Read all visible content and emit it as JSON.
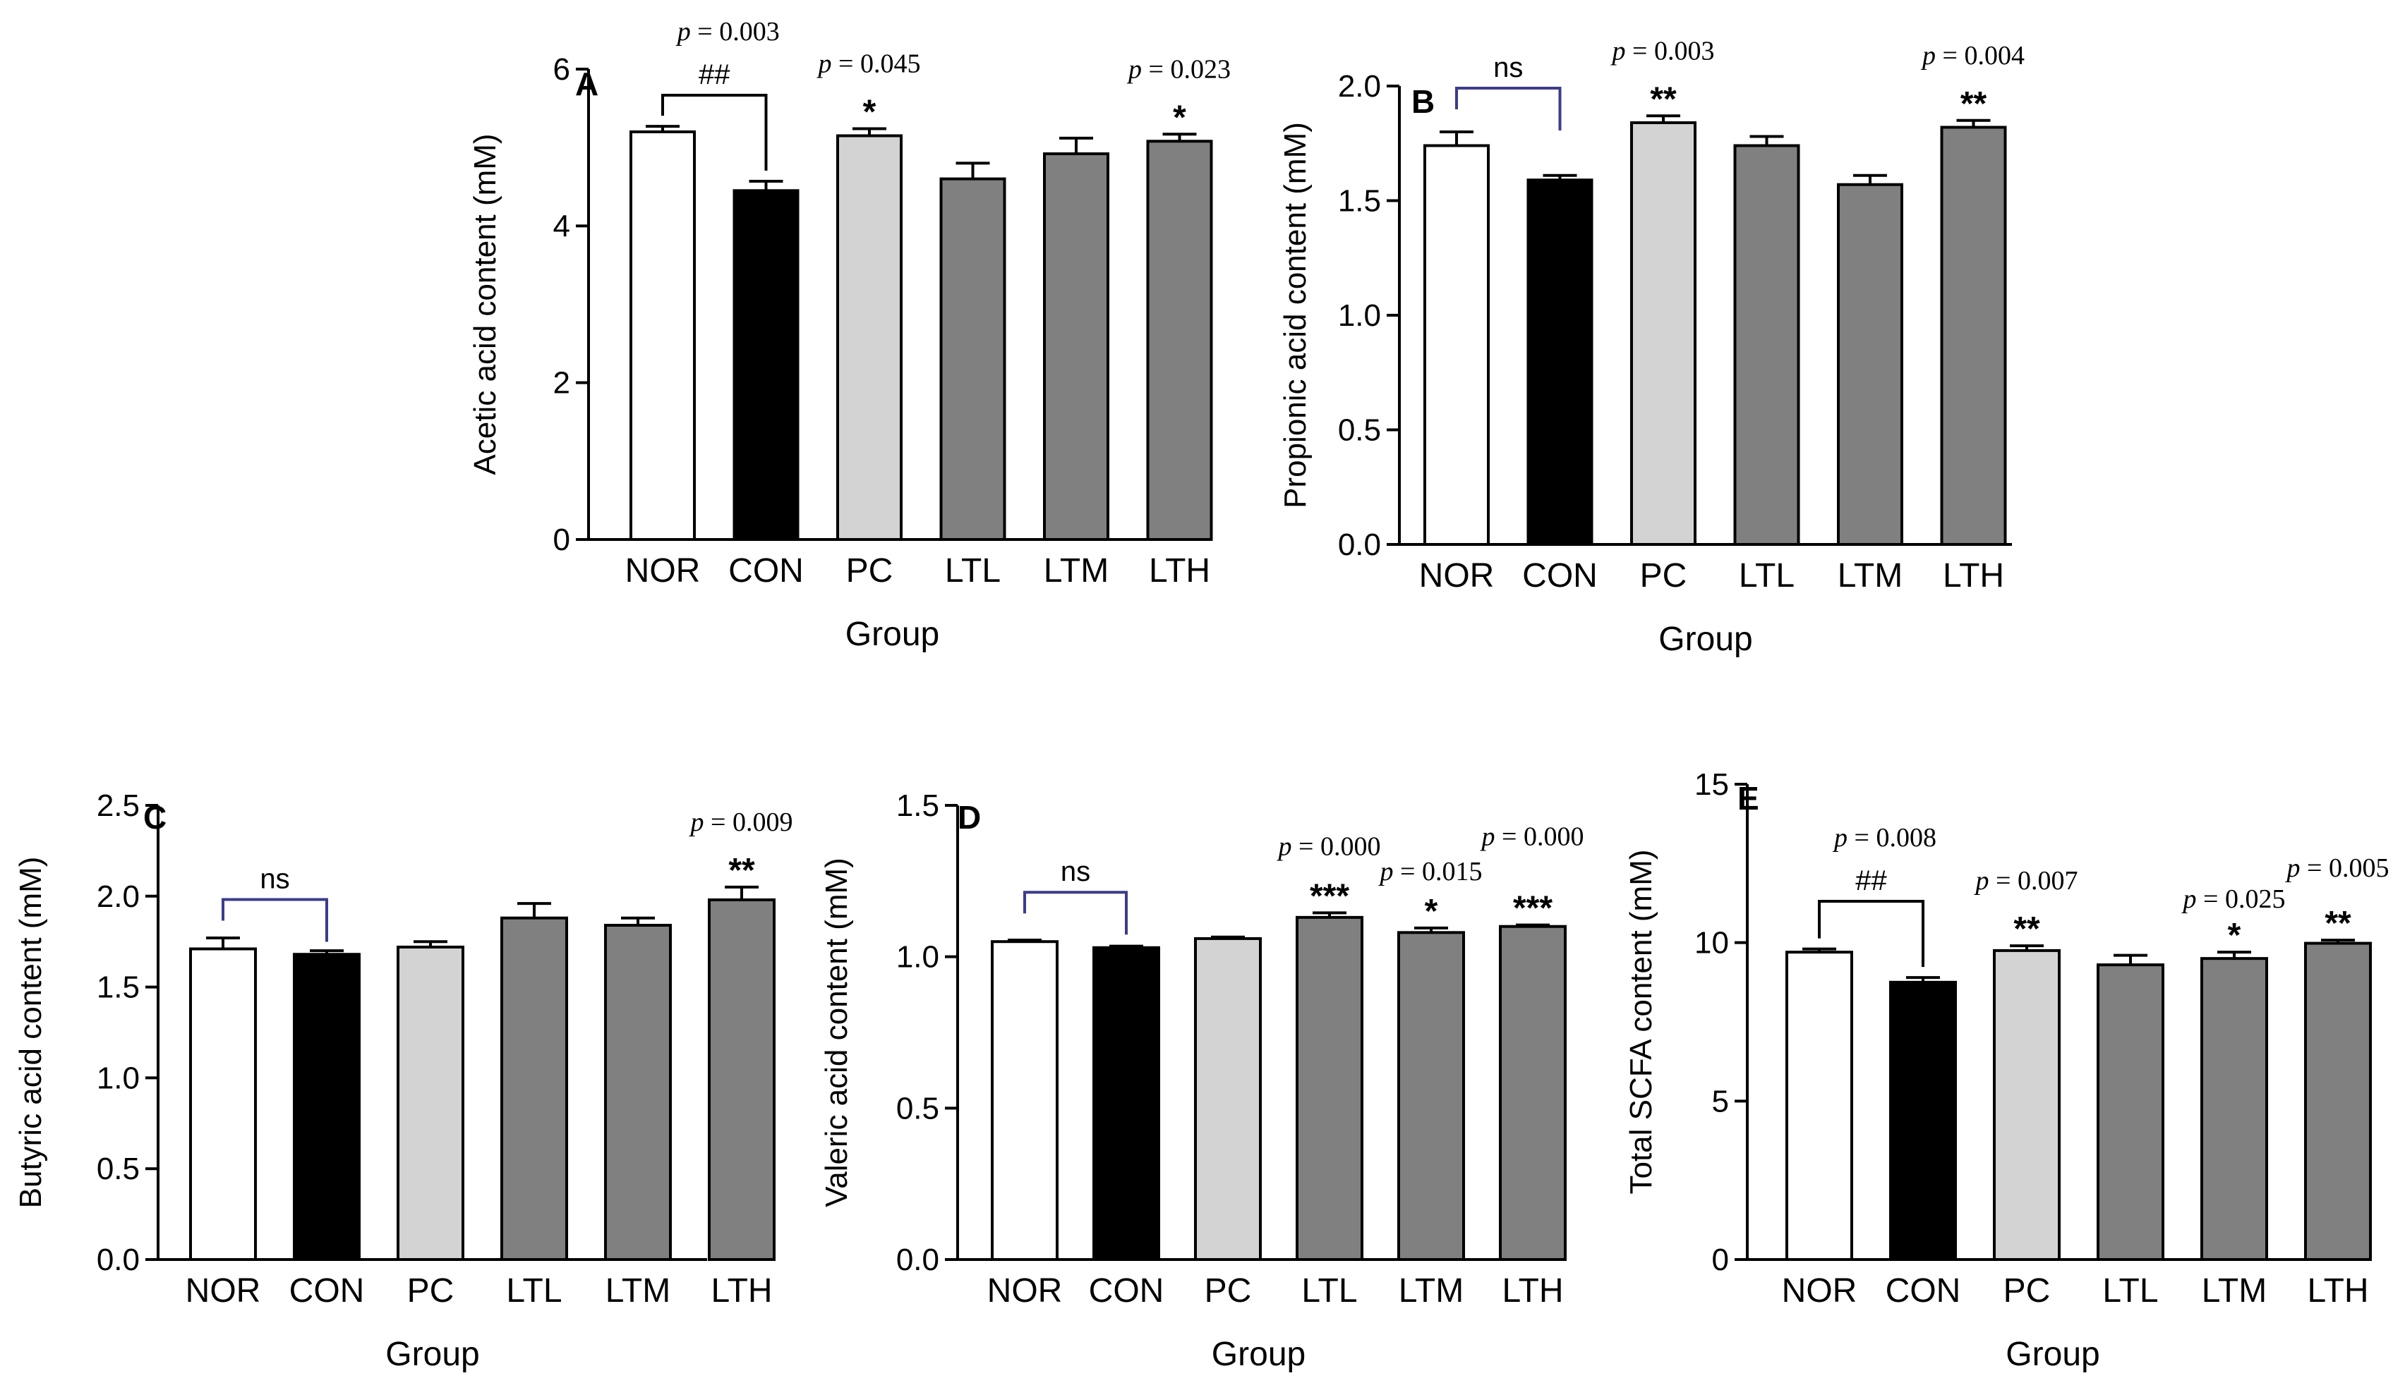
{
  "chart_data": [
    {
      "type": "bar",
      "panel": "A",
      "ylabel": "Acetic acid content (mM)",
      "xlabel": "Group",
      "categories": [
        "NOR",
        "CON",
        "PC",
        "LTL",
        "LTM",
        "LTH"
      ],
      "values": [
        5.2,
        4.45,
        5.15,
        4.6,
        4.92,
        5.08
      ],
      "errors": [
        0.07,
        0.12,
        0.09,
        0.2,
        0.2,
        0.09
      ],
      "ylim": [
        0,
        6
      ],
      "yticks": [
        "0",
        "2",
        "4",
        "6"
      ],
      "comparison": {
        "from": 0,
        "to": 1,
        "label": "##",
        "p": "p = 0.003"
      },
      "annotations": [
        {
          "index": 2,
          "stars": "*",
          "p": "p = 0.045"
        },
        {
          "index": 5,
          "stars": "*",
          "p": "p = 0.023"
        }
      ]
    },
    {
      "type": "bar",
      "panel": "B",
      "ylabel": "Propionic acid content (mM)",
      "xlabel": "Group",
      "categories": [
        "NOR",
        "CON",
        "PC",
        "LTL",
        "LTM",
        "LTH"
      ],
      "values": [
        1.74,
        1.59,
        1.84,
        1.74,
        1.57,
        1.82
      ],
      "errors": [
        0.06,
        0.02,
        0.03,
        0.04,
        0.04,
        0.03
      ],
      "ylim": [
        0,
        2.0
      ],
      "yticks": [
        "0.0",
        "0.5",
        "1.0",
        "1.5",
        "2.0"
      ],
      "comparison": {
        "from": 0,
        "to": 1,
        "label": "ns"
      },
      "annotations": [
        {
          "index": 2,
          "stars": "**",
          "p": "p = 0.003"
        },
        {
          "index": 5,
          "stars": "**",
          "p": "p = 0.004"
        }
      ]
    },
    {
      "type": "bar",
      "panel": "C",
      "ylabel": "Butyric acid content (mM)",
      "xlabel": "Group",
      "categories": [
        "NOR",
        "CON",
        "PC",
        "LTL",
        "LTM",
        "LTH"
      ],
      "values": [
        1.71,
        1.68,
        1.72,
        1.88,
        1.84,
        1.98
      ],
      "errors": [
        0.06,
        0.02,
        0.03,
        0.08,
        0.04,
        0.07
      ],
      "ylim": [
        0,
        2.5
      ],
      "yticks": [
        "0.0",
        "0.5",
        "1.0",
        "1.5",
        "2.0",
        "2.5"
      ],
      "comparison": {
        "from": 0,
        "to": 1,
        "label": "ns"
      },
      "annotations": [
        {
          "index": 5,
          "stars": "**",
          "p": "p = 0.009"
        }
      ]
    },
    {
      "type": "bar",
      "panel": "D",
      "ylabel": "Valeric acid content (mM)",
      "xlabel": "Group",
      "categories": [
        "NOR",
        "CON",
        "PC",
        "LTL",
        "LTM",
        "LTH"
      ],
      "values": [
        1.05,
        1.03,
        1.06,
        1.13,
        1.08,
        1.1
      ],
      "errors": [
        0.005,
        0.005,
        0.005,
        0.015,
        0.015,
        0.005
      ],
      "ylim": [
        0,
        1.5
      ],
      "yticks": [
        "0.0",
        "0.5",
        "1.0",
        "1.5"
      ],
      "comparison": {
        "from": 0,
        "to": 1,
        "label": "ns"
      },
      "annotations": [
        {
          "index": 3,
          "stars": "***",
          "p": "p = 0.000"
        },
        {
          "index": 4,
          "stars": "*",
          "p": "p = 0.015"
        },
        {
          "index": 5,
          "stars": "***",
          "p": "p = 0.000"
        }
      ]
    },
    {
      "type": "bar",
      "panel": "E",
      "ylabel": "Total SCFA content (mM)",
      "xlabel": "Group",
      "categories": [
        "NOR",
        "CON",
        "PC",
        "LTL",
        "LTM",
        "LTH"
      ],
      "values": [
        9.7,
        8.75,
        9.75,
        9.3,
        9.5,
        9.98
      ],
      "errors": [
        0.1,
        0.15,
        0.15,
        0.3,
        0.2,
        0.1
      ],
      "ylim": [
        0,
        15
      ],
      "yticks": [
        "0",
        "5",
        "10",
        "15"
      ],
      "comparison": {
        "from": 0,
        "to": 1,
        "label": "##",
        "p": "p = 0.008"
      },
      "annotations": [
        {
          "index": 2,
          "stars": "**",
          "p": "p = 0.007"
        },
        {
          "index": 4,
          "stars": "*",
          "p": "p = 0.025"
        },
        {
          "index": 5,
          "stars": "**",
          "p": "p = 0.005"
        }
      ]
    }
  ],
  "colors": {
    "NOR": "#ffffff",
    "CON": "#000000",
    "PC": "#d3d3d3",
    "LTL": "#808080",
    "LTM": "#808080",
    "LTH": "#808080",
    "bracket_ns": "#3c3c8c",
    "bracket_sig": "#000000"
  }
}
